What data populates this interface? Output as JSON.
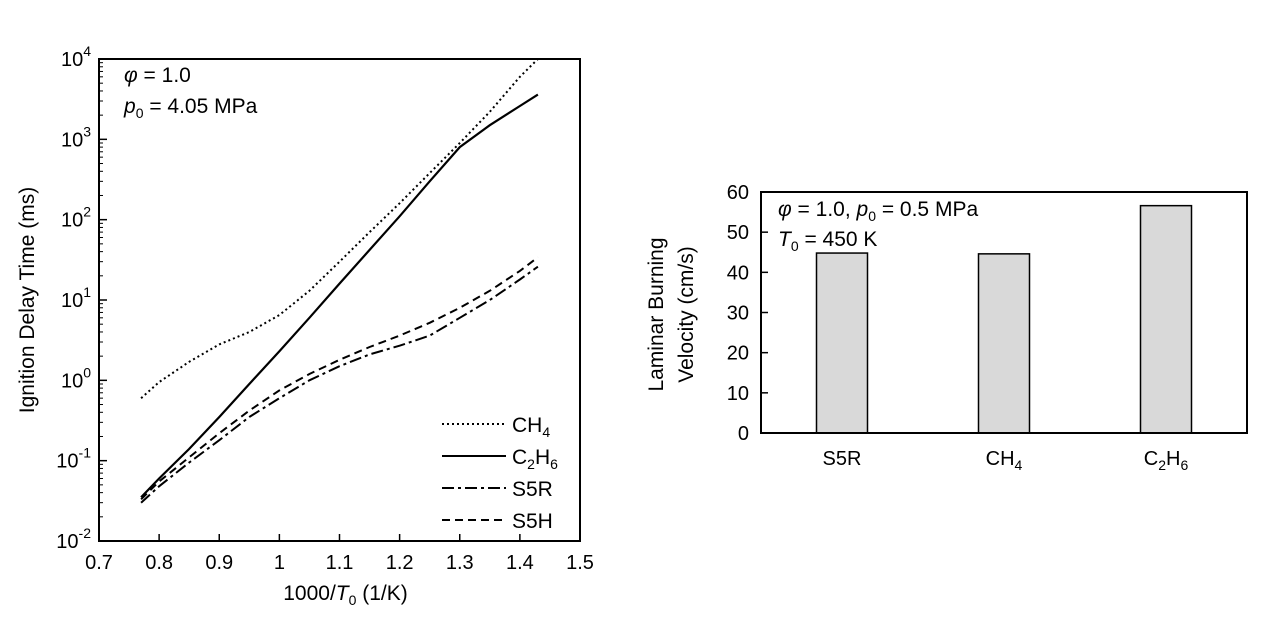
{
  "chart_data": [
    {
      "type": "line",
      "xlabel": "1000/T0 (1/K)",
      "xlabel_parts": {
        "pre": "1000/",
        "var": "T",
        "sub": "0",
        "post": " (1/K)"
      },
      "ylabel": "Ignition Delay Time (ms)",
      "y_scale": "log",
      "xlim": [
        0.7,
        1.5
      ],
      "ylim": [
        0.01,
        10000
      ],
      "x_ticks": [
        "0.7",
        "0.8",
        "0.9",
        "1",
        "1.1",
        "1.2",
        "1.3",
        "1.4",
        "1.5"
      ],
      "y_ticks": [
        {
          "base": "10",
          "exp": "-2"
        },
        {
          "base": "10",
          "exp": "-1"
        },
        {
          "base": "10",
          "exp": "0"
        },
        {
          "base": "10",
          "exp": "1"
        },
        {
          "base": "10",
          "exp": "2"
        },
        {
          "base": "10",
          "exp": "3"
        },
        {
          "base": "10",
          "exp": "4"
        }
      ],
      "annotations": {
        "line1": {
          "sym": "φ",
          "rest": " = 1.0"
        },
        "line2": {
          "sym": "p",
          "sub": "0",
          "rest": " = 4.05 MPa"
        }
      },
      "legend_position": "bottom-right",
      "series": [
        {
          "name": "CH4",
          "label_base": "CH",
          "label_sub": "4",
          "dash": "dotted",
          "x": [
            0.77,
            0.8,
            0.85,
            0.9,
            0.95,
            1.0,
            1.05,
            1.1,
            1.15,
            1.2,
            1.25,
            1.3,
            1.35,
            1.4,
            1.43
          ],
          "y": [
            0.6,
            0.95,
            1.7,
            2.8,
            4.0,
            6.5,
            13,
            30,
            70,
            160,
            380,
            900,
            2200,
            6000,
            10000
          ]
        },
        {
          "name": "C2H6",
          "label_base": "C",
          "label_sub": "2",
          "label_mid": "H",
          "label_sub2": "6",
          "dash": "solid",
          "x": [
            0.77,
            0.8,
            0.85,
            0.9,
            0.95,
            1.0,
            1.05,
            1.1,
            1.15,
            1.2,
            1.25,
            1.3,
            1.35,
            1.4,
            1.43
          ],
          "y": [
            0.035,
            0.06,
            0.14,
            0.35,
            0.9,
            2.3,
            6,
            16,
            42,
            110,
            300,
            800,
            1500,
            2600,
            3600
          ]
        },
        {
          "name": "S5R",
          "label_base": "S5R",
          "dash": "dashdot",
          "x": [
            0.77,
            0.8,
            0.85,
            0.9,
            0.95,
            1.0,
            1.05,
            1.1,
            1.15,
            1.2,
            1.25,
            1.3,
            1.35,
            1.4,
            1.43
          ],
          "y": [
            0.03,
            0.048,
            0.095,
            0.18,
            0.35,
            0.6,
            1.0,
            1.5,
            2.1,
            2.7,
            3.6,
            6,
            10,
            18,
            26
          ]
        },
        {
          "name": "S5H",
          "label_base": "S5H",
          "dash": "dashed",
          "x": [
            0.77,
            0.8,
            0.85,
            0.9,
            0.95,
            1.0,
            1.05,
            1.1,
            1.15,
            1.2,
            1.25,
            1.3,
            1.35,
            1.4,
            1.43
          ],
          "y": [
            0.033,
            0.055,
            0.11,
            0.22,
            0.42,
            0.75,
            1.2,
            1.8,
            2.6,
            3.6,
            5.2,
            8,
            13,
            23,
            34
          ]
        }
      ]
    },
    {
      "type": "bar",
      "ylabel_lines": [
        "Laminar Burning",
        "Velocity (cm/s)"
      ],
      "ylim": [
        0,
        60
      ],
      "y_ticks": [
        "0",
        "10",
        "20",
        "30",
        "40",
        "50",
        "60"
      ],
      "categories": [
        {
          "base": "S5R"
        },
        {
          "base": "CH",
          "sub": "4"
        },
        {
          "base": "C",
          "sub": "2",
          "mid": "H",
          "sub2": "6"
        }
      ],
      "values": [
        44.8,
        44.6,
        56.6
      ],
      "bar_color": "#d9d9d9",
      "annotations": {
        "line1": {
          "sym": "φ",
          "rest1": " = 1.0,  ",
          "sym2": "p",
          "sub2": "0",
          "rest2": " = 0.5 MPa"
        },
        "line2": {
          "sym": "T",
          "sub": "0",
          "rest": " = 450 K"
        }
      }
    }
  ]
}
